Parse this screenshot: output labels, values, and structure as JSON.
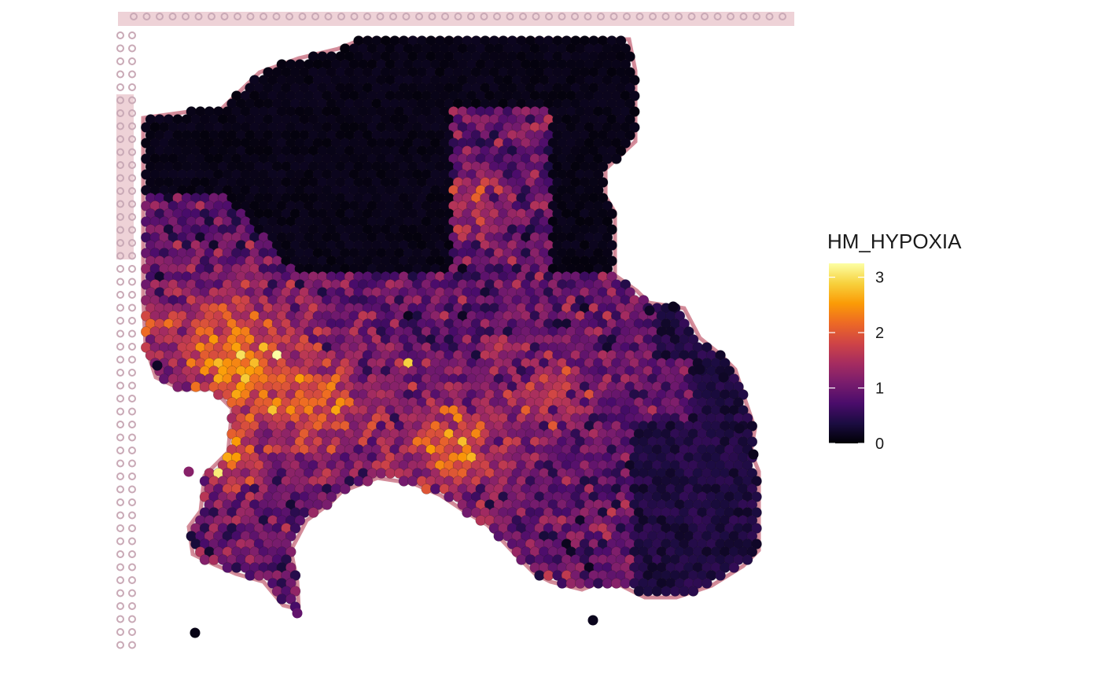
{
  "chart_data": {
    "type": "heatmap",
    "subtype": "spatial spot plot over tissue image",
    "title": "",
    "xlabel": "",
    "ylabel": "",
    "legend": {
      "title": "HM_HYPOXIA",
      "placement": "right",
      "ticks": [
        "0",
        "1",
        "2",
        "3"
      ],
      "range": [
        0,
        3.25
      ],
      "colormap": "inferno",
      "colors": [
        "#000004",
        "#1b0c41",
        "#4a0c6b",
        "#781c6d",
        "#a52c60",
        "#cf4446",
        "#ed6925",
        "#fb9b06",
        "#f7d13d",
        "#fcffa4"
      ]
    },
    "grid": false,
    "regions": [
      {
        "name": "upper dark region",
        "level": 0.05
      },
      {
        "name": "upper-left dark strip",
        "level": 0.05
      },
      {
        "name": "lower-right dark region",
        "level": 0.2
      },
      {
        "name": "central mid band",
        "level": 0.9
      },
      {
        "name": "left hotspot cluster",
        "level": 2.4
      },
      {
        "name": "lower-middle hotspot cluster",
        "level": 2.1
      }
    ],
    "hotspots": [
      {
        "level": 3.25
      },
      {
        "level": 3.1
      },
      {
        "level": 3.0
      },
      {
        "level": 2.9
      },
      {
        "level": 2.8
      },
      {
        "level": 2.7
      },
      {
        "level": 2.6
      },
      {
        "level": 2.5
      }
    ]
  },
  "colors": {
    "background": "#ffffff",
    "tissue_stain": "#b03048",
    "fiducial": "#c9a9b6"
  }
}
